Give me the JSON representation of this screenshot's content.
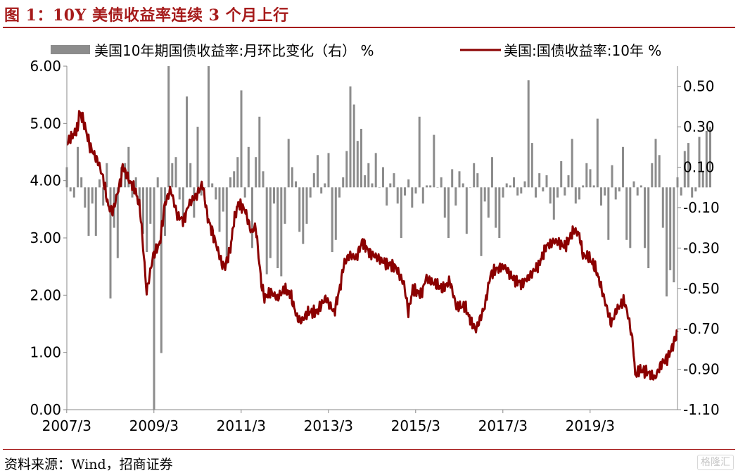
{
  "header": {
    "title": "图 1：10Y 美债收益率连续 3 个月上行"
  },
  "footer": {
    "source": "资料来源：Wind，招商证券",
    "watermark": "格隆汇"
  },
  "colors": {
    "bar": "#8c8c8c",
    "line": "#8b0000",
    "accent": "#a61b1b"
  },
  "chart_data": {
    "type": "bar+line",
    "title": "图 1：10Y 美债收益率连续 3 个月上行",
    "legend_position": "top",
    "x_ticks": [
      "2007/3",
      "2009/3",
      "2011/3",
      "2013/3",
      "2015/3",
      "2017/3",
      "2019/3"
    ],
    "x_range": [
      2007.17,
      2021.17
    ],
    "y_left": {
      "range": [
        0,
        6
      ],
      "ticks": [
        "0.00",
        "1.00",
        "2.00",
        "3.00",
        "4.00",
        "5.00",
        "6.00"
      ]
    },
    "y_right": {
      "range": [
        -1.1,
        0.6
      ],
      "ticks": [
        "0.50",
        "0.30",
        "0.10",
        "-0.10",
        "-0.30",
        "-0.50",
        "-0.70",
        "-0.90",
        "-1.10"
      ]
    },
    "series": [
      {
        "name": "美国10年期国债收益率:月环比变化（右） %",
        "type": "bar",
        "axis": "right",
        "start": 2007.17,
        "step_months": 1,
        "values": [
          0.1,
          -0.02,
          -0.05,
          0.2,
          0.05,
          -0.1,
          -0.24,
          -0.08,
          -0.24,
          0.04,
          -0.09,
          0.12,
          -0.55,
          -0.2,
          -0.35,
          0.1,
          0.12,
          0.2,
          -0.05,
          0.05,
          -0.08,
          -0.23,
          -0.32,
          -0.18,
          -1.1,
          0.05,
          -0.82,
          -0.24,
          0.6,
          0.12,
          0.15,
          -0.06,
          -0.18,
          0.45,
          0.12,
          -0.15,
          0.3,
          -0.04,
          0.0,
          0.6,
          0.02,
          -0.06,
          -0.22,
          -0.12,
          -0.38,
          0.05,
          0.08,
          0.15,
          0.48,
          -0.05,
          0.2,
          -0.3,
          0.15,
          0.35,
          0.08,
          -0.43,
          -0.35,
          -0.08,
          -0.4,
          -0.44,
          -0.18,
          0.24,
          0.1,
          0.03,
          -0.22,
          -0.28,
          -0.18,
          -0.05,
          0.07,
          0.16,
          -0.03,
          0.02,
          0.17,
          -0.32,
          -0.26,
          -0.05,
          0.05,
          0.18,
          0.5,
          0.41,
          0.23,
          0.29,
          0.06,
          0.12,
          0.02,
          0.17,
          0.0,
          0.1,
          -0.09,
          0.02,
          0.07,
          -0.08,
          -0.25,
          -0.04,
          0.04,
          -0.1,
          -0.03,
          0.35,
          -0.08,
          0.01,
          0.01,
          0.26,
          0.0,
          0.05,
          -0.15,
          -0.25,
          0.09,
          -0.09,
          0.08,
          0.02,
          -0.23,
          0.0,
          0.12,
          0.07,
          -0.34,
          -0.07,
          -0.15,
          0.15,
          -0.2,
          -0.25,
          -0.05,
          0.02,
          0.01,
          0.05,
          -0.04,
          -0.03,
          0.03,
          0.53,
          0.22,
          -0.05,
          0.07,
          -0.02,
          0.06,
          -0.08,
          -0.16,
          -0.05,
          0.13,
          -0.04,
          0.06,
          0.24,
          -0.08,
          -0.06,
          0.01,
          0.12,
          0.09,
          0.01,
          0.34,
          -0.09,
          -0.04,
          -0.26,
          0.11,
          -0.06,
          -0.02,
          0.2,
          -0.26,
          -0.3,
          0.03,
          -0.04,
          0.01,
          -0.3,
          -0.4,
          0.12,
          0.24,
          0.16,
          -0.2,
          -0.54,
          -0.41,
          -0.47,
          0.05,
          -0.04,
          0.18,
          0.22,
          -0.05,
          -0.02,
          0.25,
          0.08,
          0.28,
          0.3
        ]
      },
      {
        "name": "美国:国债收益率:10年 %",
        "type": "line",
        "axis": "left",
        "points": [
          [
            2007.17,
            4.65
          ],
          [
            2007.42,
            4.9
          ],
          [
            2007.45,
            5.2
          ],
          [
            2007.55,
            5.05
          ],
          [
            2007.7,
            4.6
          ],
          [
            2007.9,
            4.3
          ],
          [
            2008.0,
            4.05
          ],
          [
            2008.12,
            3.55
          ],
          [
            2008.22,
            3.45
          ],
          [
            2008.42,
            4.05
          ],
          [
            2008.45,
            4.25
          ],
          [
            2008.6,
            4.0
          ],
          [
            2008.75,
            3.8
          ],
          [
            2008.85,
            3.5
          ],
          [
            2008.97,
            2.35
          ],
          [
            2009.0,
            2.05
          ],
          [
            2009.15,
            2.7
          ],
          [
            2009.3,
            2.9
          ],
          [
            2009.42,
            3.6
          ],
          [
            2009.55,
            3.85
          ],
          [
            2009.7,
            3.4
          ],
          [
            2009.85,
            3.3
          ],
          [
            2009.97,
            3.6
          ],
          [
            2010.15,
            3.75
          ],
          [
            2010.28,
            3.95
          ],
          [
            2010.4,
            3.35
          ],
          [
            2010.55,
            3.0
          ],
          [
            2010.72,
            2.55
          ],
          [
            2010.8,
            2.5
          ],
          [
            2010.92,
            2.8
          ],
          [
            2011.0,
            3.3
          ],
          [
            2011.1,
            3.6
          ],
          [
            2011.25,
            3.5
          ],
          [
            2011.4,
            3.1
          ],
          [
            2011.5,
            3.2
          ],
          [
            2011.63,
            2.2
          ],
          [
            2011.7,
            1.95
          ],
          [
            2011.85,
            2.05
          ],
          [
            2012.0,
            1.95
          ],
          [
            2012.15,
            2.1
          ],
          [
            2012.3,
            2.0
          ],
          [
            2012.45,
            1.6
          ],
          [
            2012.55,
            1.55
          ],
          [
            2012.7,
            1.7
          ],
          [
            2012.9,
            1.7
          ],
          [
            2013.1,
            1.95
          ],
          [
            2013.3,
            1.7
          ],
          [
            2013.45,
            2.2
          ],
          [
            2013.52,
            2.55
          ],
          [
            2013.65,
            2.7
          ],
          [
            2013.8,
            2.65
          ],
          [
            2013.95,
            2.95
          ],
          [
            2014.1,
            2.75
          ],
          [
            2014.3,
            2.65
          ],
          [
            2014.5,
            2.55
          ],
          [
            2014.7,
            2.5
          ],
          [
            2014.9,
            2.2
          ],
          [
            2015.0,
            1.7
          ],
          [
            2015.1,
            2.1
          ],
          [
            2015.3,
            2.0
          ],
          [
            2015.4,
            2.3
          ],
          [
            2015.6,
            2.2
          ],
          [
            2015.8,
            2.1
          ],
          [
            2015.95,
            2.25
          ],
          [
            2016.1,
            1.8
          ],
          [
            2016.3,
            1.8
          ],
          [
            2016.45,
            1.5
          ],
          [
            2016.55,
            1.4
          ],
          [
            2016.75,
            1.8
          ],
          [
            2016.88,
            2.35
          ],
          [
            2017.0,
            2.45
          ],
          [
            2017.2,
            2.5
          ],
          [
            2017.4,
            2.3
          ],
          [
            2017.6,
            2.2
          ],
          [
            2017.8,
            2.35
          ],
          [
            2018.0,
            2.55
          ],
          [
            2018.15,
            2.85
          ],
          [
            2018.35,
            2.95
          ],
          [
            2018.6,
            2.85
          ],
          [
            2018.8,
            3.15
          ],
          [
            2018.92,
            3.05
          ],
          [
            2019.0,
            2.7
          ],
          [
            2019.15,
            2.65
          ],
          [
            2019.3,
            2.45
          ],
          [
            2019.45,
            2.05
          ],
          [
            2019.65,
            1.5
          ],
          [
            2019.78,
            1.75
          ],
          [
            2019.95,
            1.9
          ],
          [
            2020.05,
            1.6
          ],
          [
            2020.15,
            1.15
          ],
          [
            2020.2,
            0.6
          ],
          [
            2020.3,
            0.7
          ],
          [
            2020.5,
            0.65
          ],
          [
            2020.65,
            0.55
          ],
          [
            2020.8,
            0.8
          ],
          [
            2020.95,
            0.92
          ],
          [
            2021.05,
            1.1
          ],
          [
            2021.17,
            1.35
          ]
        ]
      }
    ]
  }
}
